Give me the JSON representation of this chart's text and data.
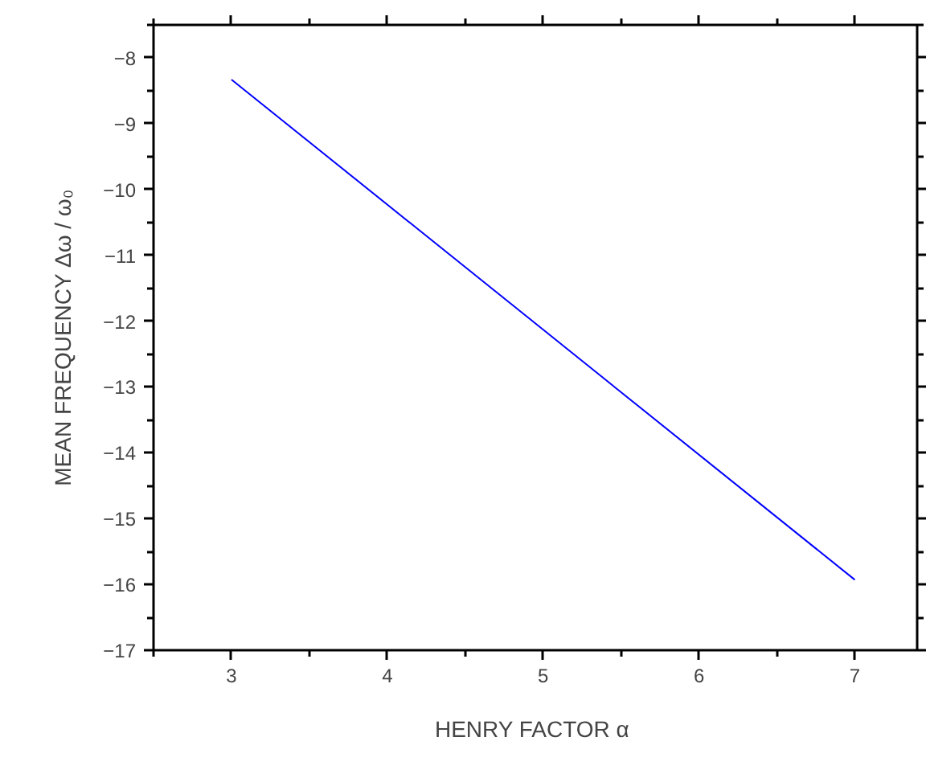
{
  "chart_data": {
    "type": "line",
    "xlabel": "HENRY FACTOR  α",
    "ylabel": "MEAN FREQUENCY Δω / ω₀",
    "x": [
      3,
      7
    ],
    "series": [
      {
        "color": "#0000ff",
        "values": [
          -8.33,
          -15.93
        ]
      }
    ],
    "xlim": [
      2.5,
      7.4
    ],
    "ylim": [
      -17,
      -7.5
    ],
    "xticks": [
      3,
      4,
      5,
      6,
      7
    ],
    "yticks": [
      -17,
      -16,
      -15,
      -14,
      -13,
      -12,
      -11,
      -10,
      -9,
      -8
    ],
    "grid": false,
    "marker": "none",
    "line_style": "solid"
  }
}
